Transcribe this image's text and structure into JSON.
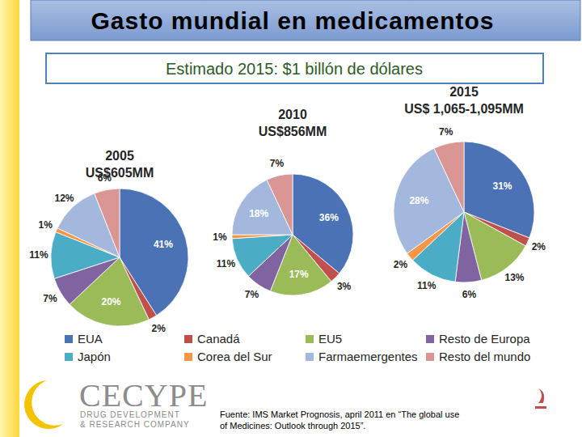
{
  "header": {
    "title": "Gasto mundial en medicamentos",
    "subtitle": "Estimado 2015: $1 billón de dólares"
  },
  "chart_data": [
    {
      "type": "pie",
      "title": "2005",
      "subtitle": "US$605MM",
      "categories": [
        "EUA",
        "Canadá",
        "EU5",
        "Resto de Europa",
        "Japón",
        "Corea del Sur",
        "Farmaemergentes",
        "Resto del mundo"
      ],
      "values": [
        41,
        2,
        20,
        7,
        11,
        1,
        12,
        6
      ],
      "value_labels": [
        "41%",
        "2%",
        "20%",
        "7%",
        "11%",
        "1%",
        "12%",
        "6%"
      ],
      "colors": [
        "#4a72b5",
        "#c0504d",
        "#9bbb59",
        "#8064a2",
        "#4bacc6",
        "#f79646",
        "#a3b8dc",
        "#d99694"
      ],
      "data_labels": true,
      "legend": "bottom"
    },
    {
      "type": "pie",
      "title": "2010",
      "subtitle": "US$856MM",
      "categories": [
        "EUA",
        "Canadá",
        "EU5",
        "Resto de Europa",
        "Japón",
        "Corea del Sur",
        "Farmaemergentes",
        "Resto del mundo"
      ],
      "values": [
        36,
        3,
        17,
        7,
        11,
        1,
        18,
        7
      ],
      "value_labels": [
        "36%",
        "3%",
        "17%",
        "7%",
        "11%",
        "1%",
        "18%",
        "7%"
      ],
      "colors": [
        "#4a72b5",
        "#c0504d",
        "#9bbb59",
        "#8064a2",
        "#4bacc6",
        "#f79646",
        "#a3b8dc",
        "#d99694"
      ],
      "data_labels": true
    },
    {
      "type": "pie",
      "title": "2015",
      "subtitle": "US$ 1,065-1,095MM",
      "categories": [
        "EUA",
        "Canadá",
        "EU5",
        "Resto de Europa",
        "Japón",
        "Corea del Sur",
        "Farmaemergentes",
        "Resto del mundo"
      ],
      "values": [
        31,
        2,
        13,
        6,
        11,
        2,
        28,
        7
      ],
      "value_labels": [
        "31%",
        "2%",
        "13%",
        "6%",
        "11%",
        "2%",
        "28%",
        "7%"
      ],
      "colors": [
        "#4a72b5",
        "#c0504d",
        "#9bbb59",
        "#8064a2",
        "#4bacc6",
        "#f79646",
        "#a3b8dc",
        "#d99694"
      ],
      "data_labels": true
    }
  ],
  "source": "Fuente: IMS Market Prognosis, april 2011 en “The global use of Medicines: Outlook through 2015”.",
  "logo": {
    "name": "CECYPE",
    "tagline": [
      "DRUG DEVELOPMENT",
      "& RESEARCH COMPANY"
    ]
  }
}
